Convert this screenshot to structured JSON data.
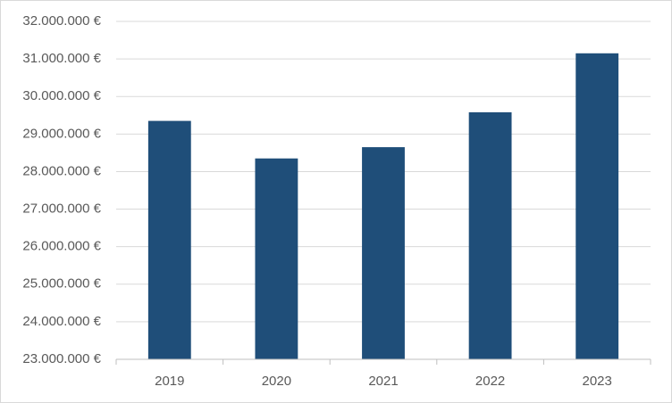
{
  "chart_data": {
    "type": "bar",
    "categories": [
      "2019",
      "2020",
      "2021",
      "2022",
      "2023"
    ],
    "values": [
      29350000,
      28350000,
      28650000,
      29580000,
      31150000
    ],
    "color": "#1f4e79",
    "ylim": [
      23000000,
      32000000
    ],
    "yticks": [
      {
        "value": 23000000,
        "label": "23.000.000 €"
      },
      {
        "value": 24000000,
        "label": "24.000.000 €"
      },
      {
        "value": 25000000,
        "label": "25.000.000 €"
      },
      {
        "value": 26000000,
        "label": "26.000.000 €"
      },
      {
        "value": 27000000,
        "label": "27.000.000 €"
      },
      {
        "value": 28000000,
        "label": "28.000.000 €"
      },
      {
        "value": 29000000,
        "label": "29.000.000 €"
      },
      {
        "value": 30000000,
        "label": "30.000.000 €"
      },
      {
        "value": 31000000,
        "label": "31.000.000 €"
      },
      {
        "value": 32000000,
        "label": "32.000.000 €"
      }
    ],
    "grid": true
  }
}
